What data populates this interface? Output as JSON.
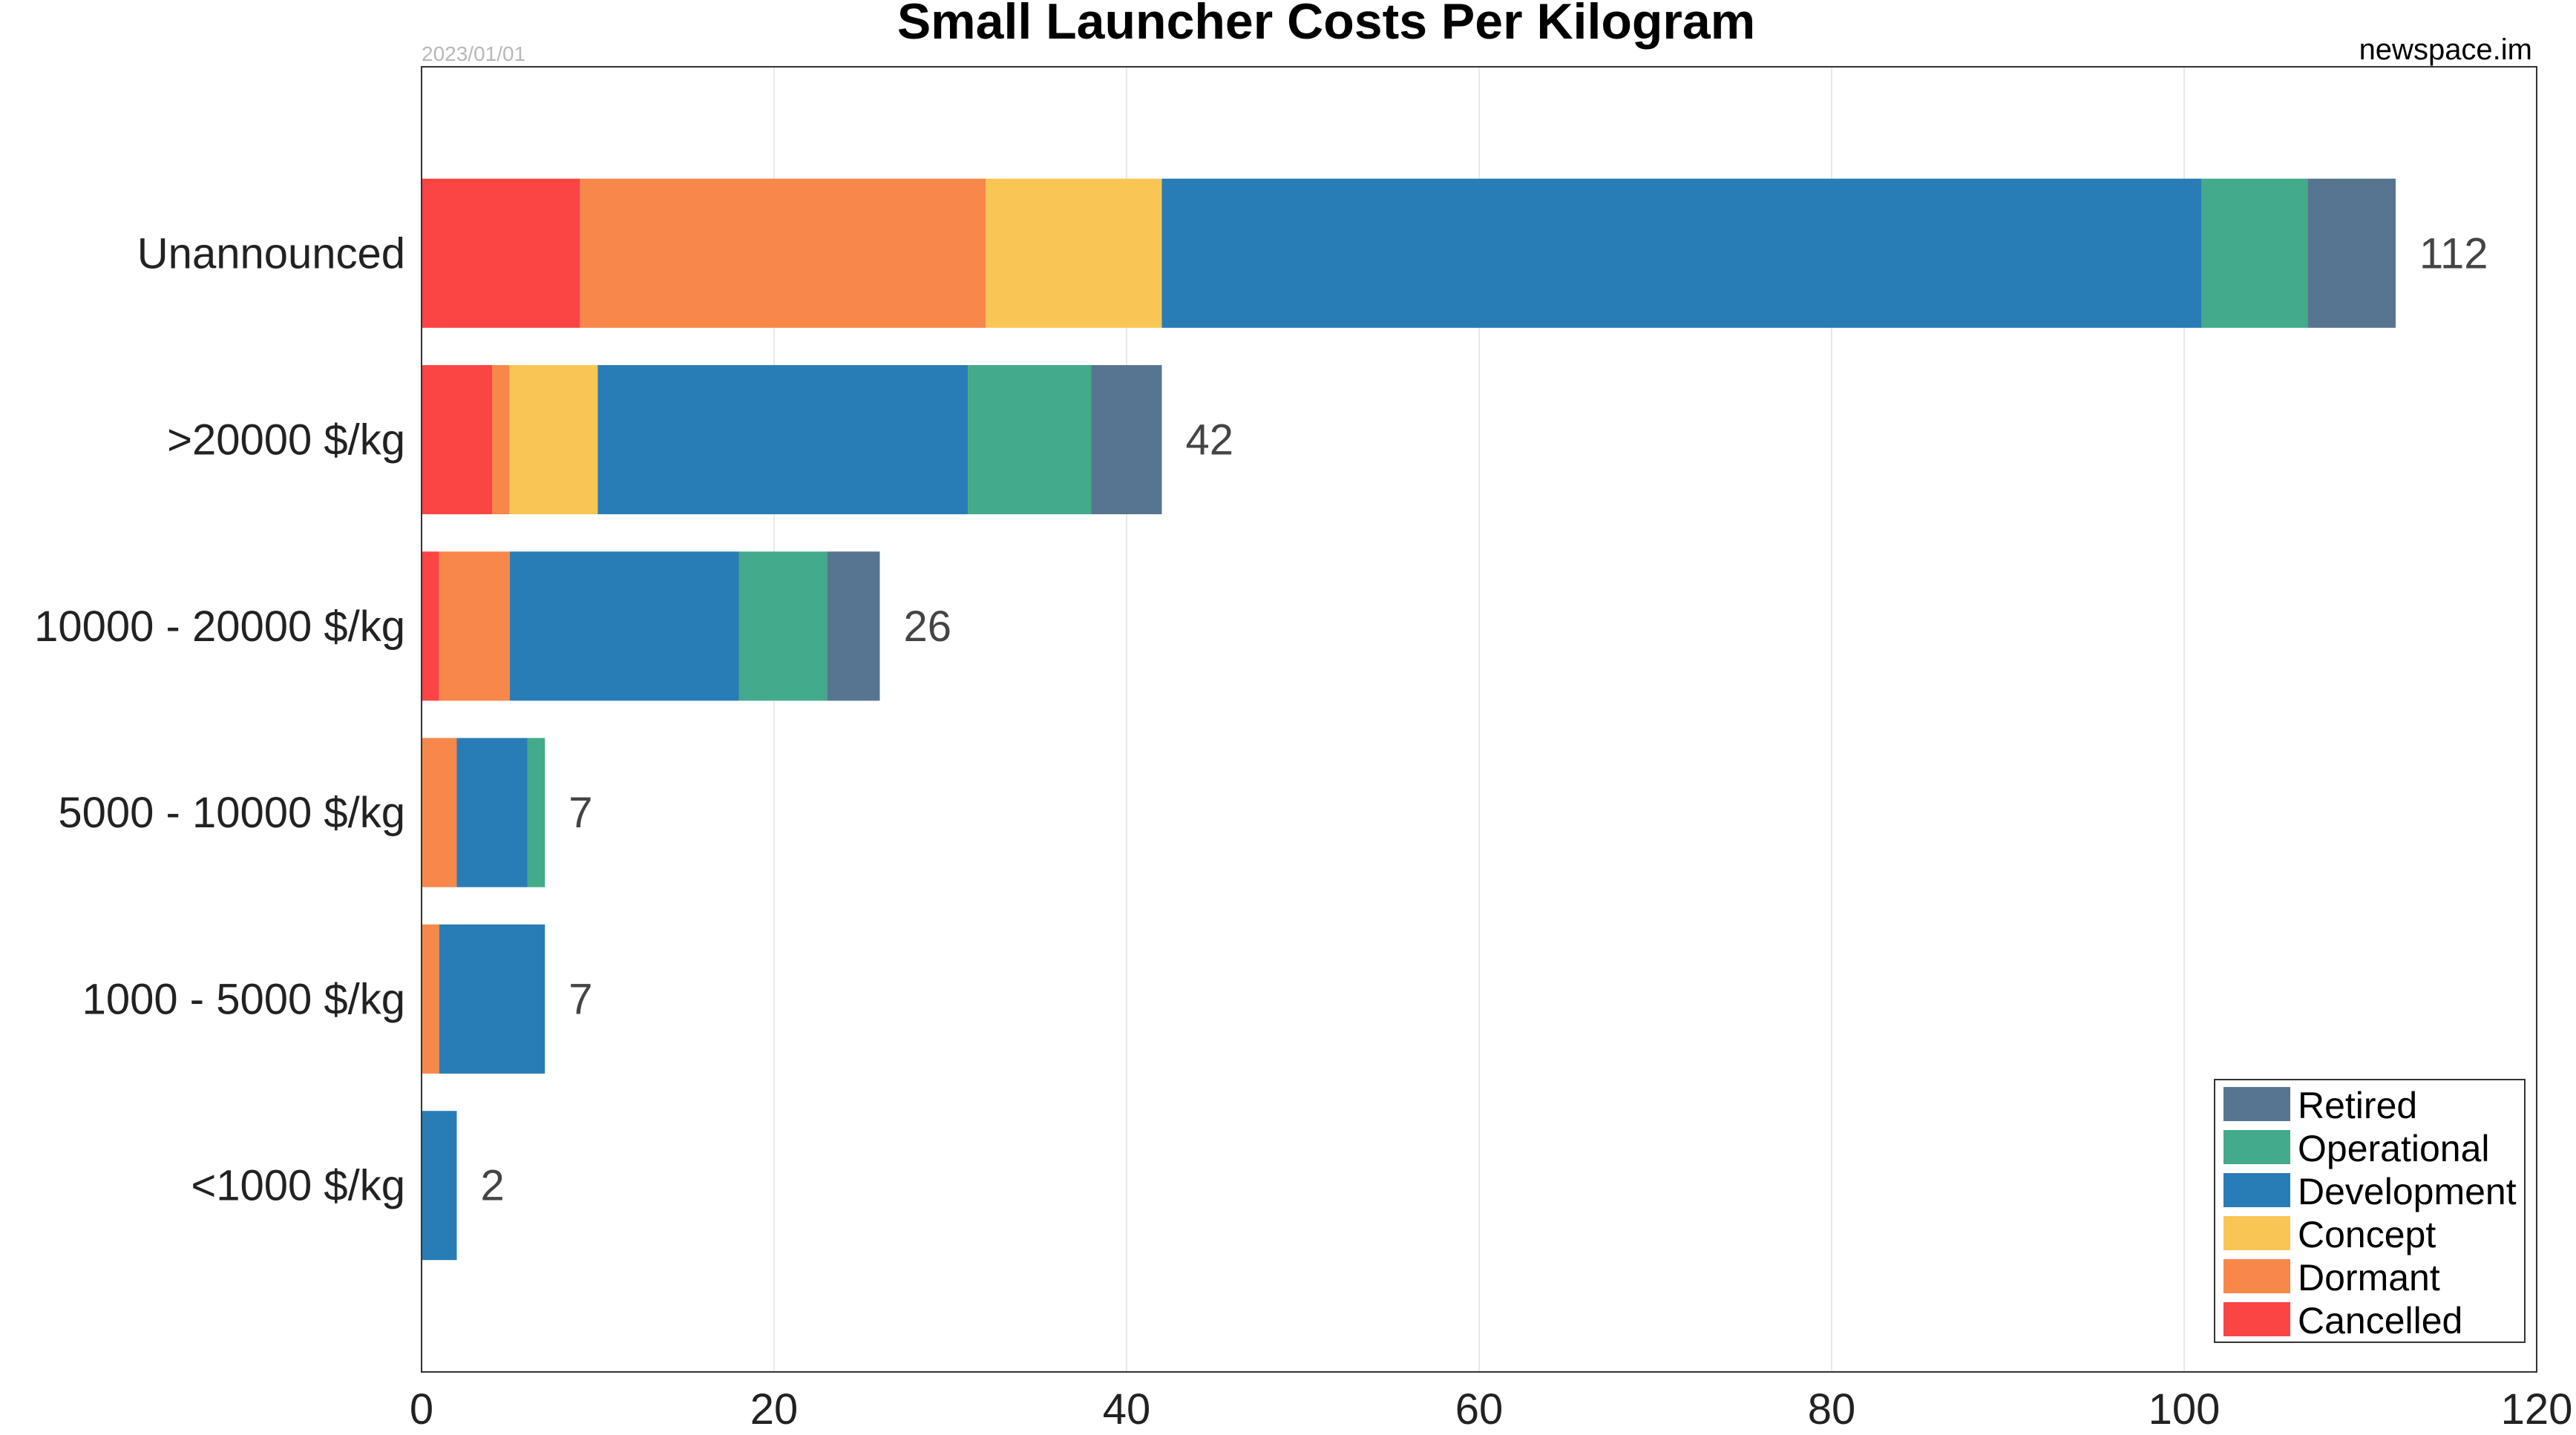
{
  "chart_data": {
    "type": "bar",
    "orientation": "horizontal",
    "stacked": true,
    "title": "Small Launcher Costs Per Kilogram",
    "date_note": "2023/01/01",
    "source_note": "newspace.im",
    "categories": [
      "Unannounced",
      ">20000 $/kg",
      "10000 - 20000 $/kg",
      "5000 - 10000 $/kg",
      "1000 - 5000 $/kg",
      "<1000 $/kg"
    ],
    "series": [
      {
        "name": "Cancelled",
        "color": "#fb4444",
        "values": [
          9,
          4,
          1,
          0,
          0,
          0
        ]
      },
      {
        "name": "Dormant",
        "color": "#f8874a",
        "values": [
          23,
          1,
          4,
          2,
          1,
          0
        ]
      },
      {
        "name": "Concept",
        "color": "#f9c655",
        "values": [
          10,
          5,
          0,
          0,
          0,
          0
        ]
      },
      {
        "name": "Development",
        "color": "#287db7",
        "values": [
          59,
          21,
          13,
          4,
          6,
          2
        ]
      },
      {
        "name": "Operational",
        "color": "#43aa8b",
        "values": [
          6,
          7,
          5,
          1,
          0,
          0
        ]
      },
      {
        "name": "Retired",
        "color": "#577590",
        "values": [
          5,
          4,
          3,
          0,
          0,
          0
        ]
      }
    ],
    "totals": [
      "112",
      "42",
      "26",
      "7",
      "7",
      "2"
    ],
    "xlim": [
      0,
      120
    ],
    "x_ticks": [
      0,
      20,
      40,
      60,
      80,
      100,
      120
    ],
    "x_tick_labels": [
      "0",
      "20",
      "40",
      "60",
      "80",
      "100",
      "120"
    ],
    "grid": true,
    "legend": {
      "placement": "bottom-right",
      "order": [
        "Retired",
        "Operational",
        "Development",
        "Concept",
        "Dormant",
        "Cancelled"
      ]
    }
  }
}
